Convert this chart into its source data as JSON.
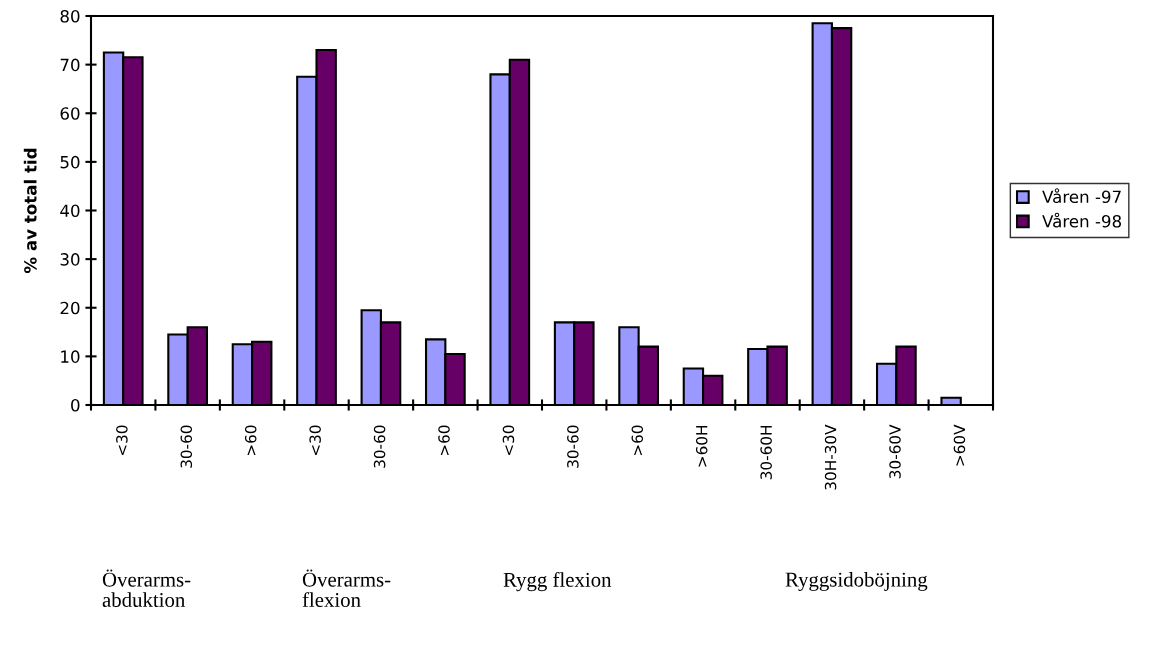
{
  "chart_data": {
    "type": "bar",
    "ylabel": "% av total tid",
    "categories": [
      "<30",
      "30-60",
      ">60",
      "<30",
      "30-60",
      ">60",
      "<30",
      "30-60",
      ">60",
      ">60H",
      "30-60H",
      "30H-30V",
      "30-60V",
      ">60V"
    ],
    "series": [
      {
        "name": "Våren -97",
        "color": "#9999ff",
        "values": [
          72.5,
          14.5,
          12.5,
          67.5,
          19.5,
          13.5,
          68,
          17,
          16,
          7.5,
          11.5,
          78.5,
          8.5,
          1.5
        ]
      },
      {
        "name": "Våren -98",
        "color": "#660066",
        "values": [
          71.5,
          16,
          13,
          73,
          17,
          10.5,
          71,
          17,
          12,
          6,
          12,
          77.5,
          12,
          null
        ]
      }
    ],
    "ylim": [
      0,
      80
    ],
    "yticks": [
      0,
      10,
      20,
      30,
      40,
      50,
      60,
      70,
      80
    ],
    "grid": false,
    "legend": "right",
    "annotations": [
      "Överarms-\nabduktion",
      "Överarms-\nflexion",
      "Rygg flexion",
      "Ryggsidoböjning"
    ]
  }
}
